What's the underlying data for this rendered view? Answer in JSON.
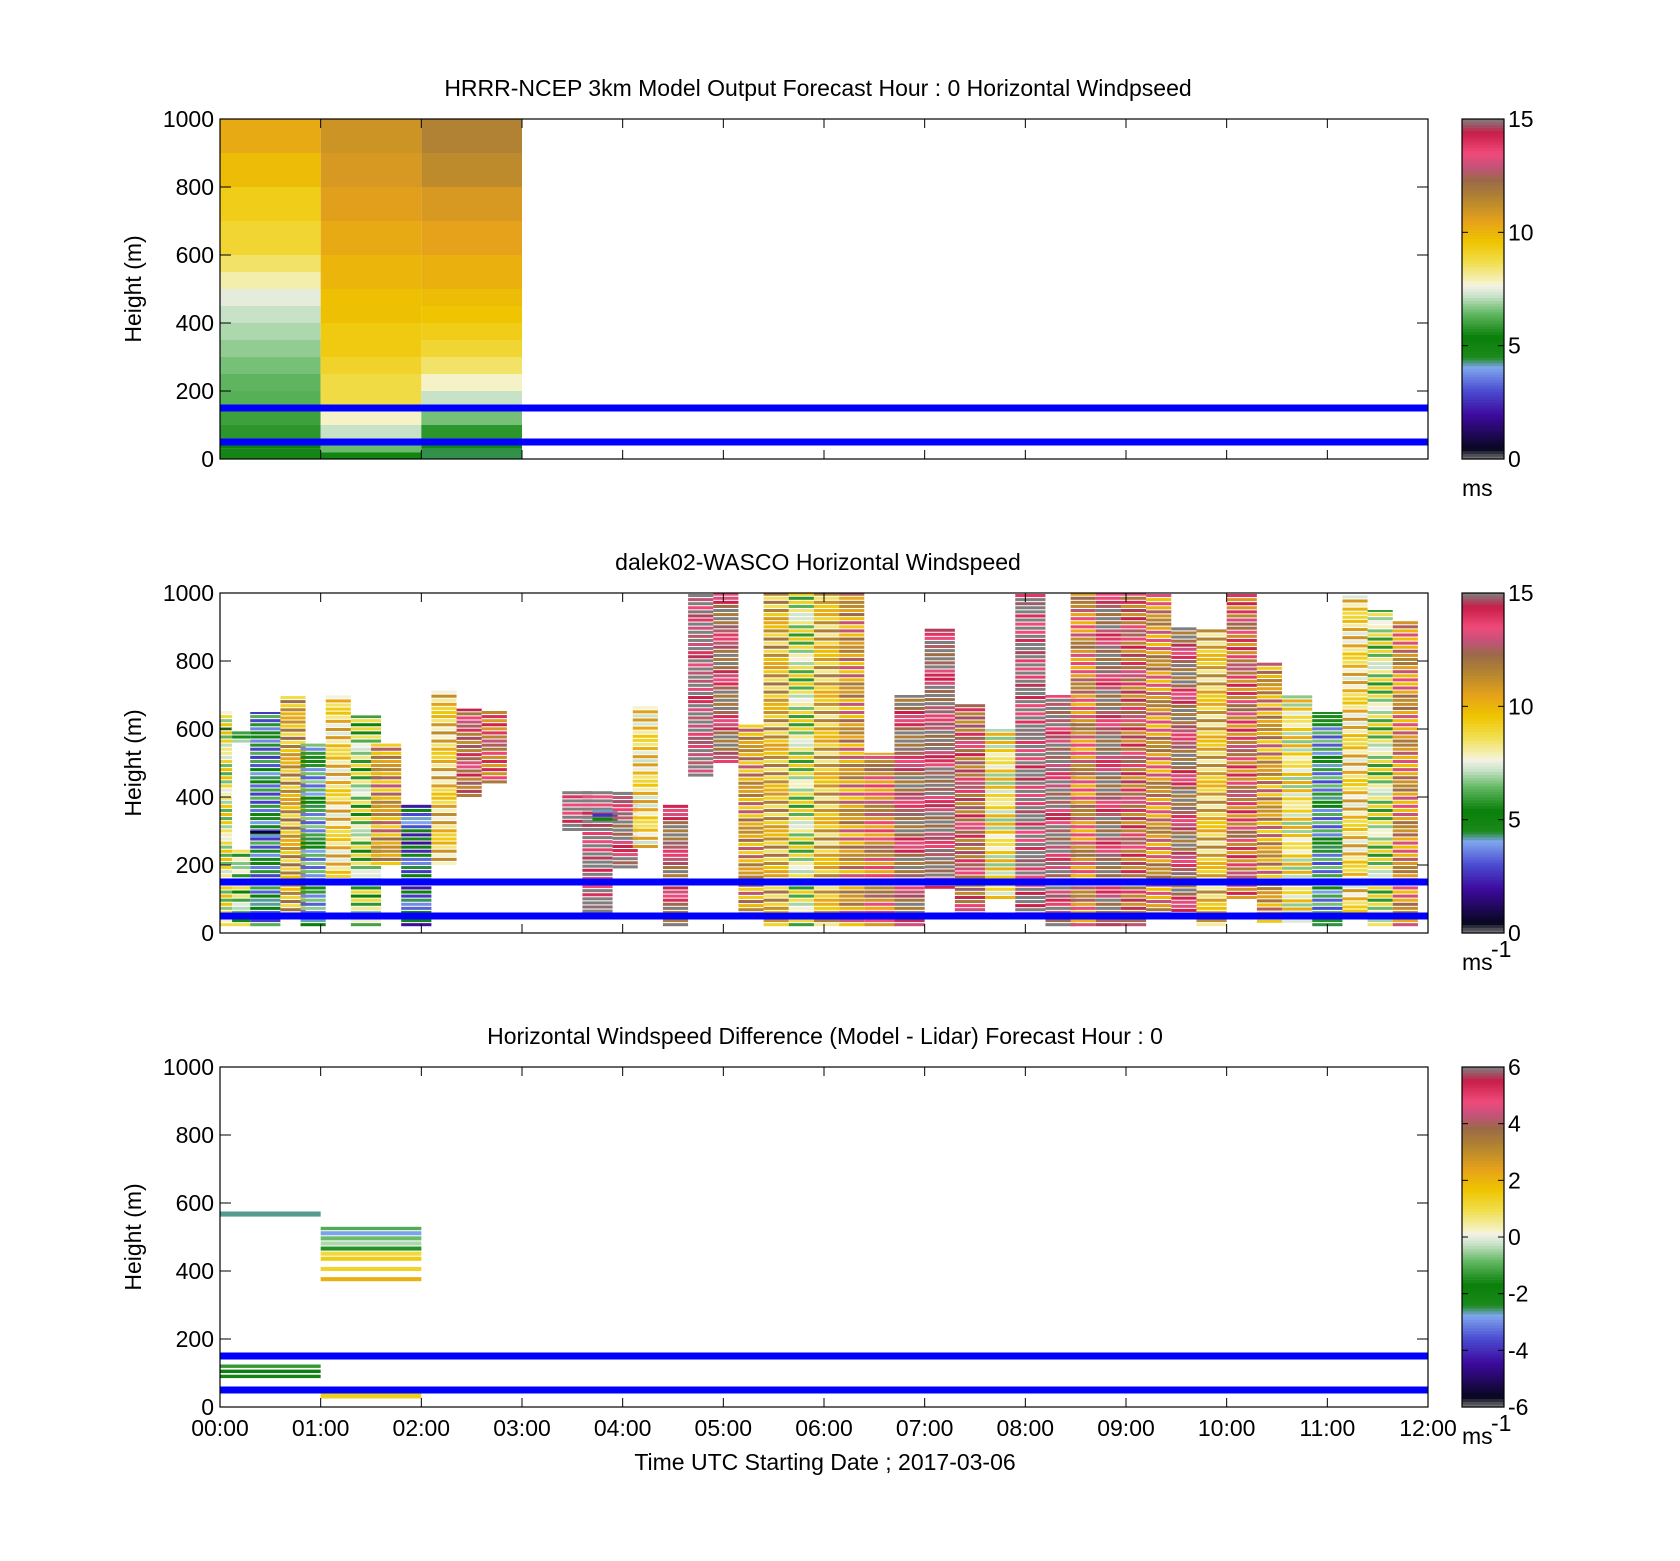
{
  "figure": {
    "background": "#ffffff",
    "xlabel": "Time UTC  Starting Date ; 2017-03-06",
    "x_tick_labels": [
      "00:00",
      "01:00",
      "02:00",
      "03:00",
      "04:00",
      "05:00",
      "06:00",
      "07:00",
      "08:00",
      "09:00",
      "10:00",
      "11:00",
      "12:00"
    ],
    "y_tick_labels": [
      "0",
      "200",
      "400",
      "600",
      "800",
      "1000"
    ],
    "ref_line_color": "#0000ff"
  },
  "chart_data": [
    {
      "type": "heatmap",
      "id": "model",
      "title": "HRRR-NCEP 3km Model Output   Forecast Hour : 0 Horizontal Windpseed",
      "ylabel": "Height (m)",
      "xlim_hours": [
        0,
        12
      ],
      "ylim": [
        0,
        1000
      ],
      "ref_lines": [
        150,
        50
      ],
      "colorbar": {
        "min": 0,
        "max": 15,
        "ticks": [
          "0",
          "5",
          "10",
          "15"
        ],
        "unit": "ms",
        "unit_sup": ""
      },
      "cells": [
        {
          "t0": 0,
          "t1": 1,
          "h0": 0,
          "h1": 30,
          "v": 4.8
        },
        {
          "t0": 0,
          "t1": 1,
          "h0": 30,
          "h1": 60,
          "v": 5.4
        },
        {
          "t0": 0,
          "t1": 1,
          "h0": 60,
          "h1": 100,
          "v": 5.8
        },
        {
          "t0": 0,
          "t1": 1,
          "h0": 100,
          "h1": 150,
          "v": 6.0
        },
        {
          "t0": 0,
          "t1": 1,
          "h0": 150,
          "h1": 200,
          "v": 6.3
        },
        {
          "t0": 0,
          "t1": 1,
          "h0": 200,
          "h1": 250,
          "v": 6.4
        },
        {
          "t0": 0,
          "t1": 1,
          "h0": 250,
          "h1": 300,
          "v": 6.6
        },
        {
          "t0": 0,
          "t1": 1,
          "h0": 300,
          "h1": 350,
          "v": 6.8
        },
        {
          "t0": 0,
          "t1": 1,
          "h0": 350,
          "h1": 400,
          "v": 7.0
        },
        {
          "t0": 0,
          "t1": 1,
          "h0": 400,
          "h1": 450,
          "v": 7.2
        },
        {
          "t0": 0,
          "t1": 1,
          "h0": 450,
          "h1": 500,
          "v": 7.5
        },
        {
          "t0": 0,
          "t1": 1,
          "h0": 500,
          "h1": 550,
          "v": 8.0
        },
        {
          "t0": 0,
          "t1": 1,
          "h0": 550,
          "h1": 600,
          "v": 8.5
        },
        {
          "t0": 0,
          "t1": 1,
          "h0": 600,
          "h1": 700,
          "v": 9.0
        },
        {
          "t0": 0,
          "t1": 1,
          "h0": 700,
          "h1": 800,
          "v": 9.3
        },
        {
          "t0": 0,
          "t1": 1,
          "h0": 800,
          "h1": 900,
          "v": 9.8
        },
        {
          "t0": 0,
          "t1": 1,
          "h0": 900,
          "h1": 1000,
          "v": 10.3
        },
        {
          "t0": 1,
          "t1": 2,
          "h0": 0,
          "h1": 20,
          "v": 5.0
        },
        {
          "t0": 1,
          "t1": 2,
          "h0": 20,
          "h1": 60,
          "v": 6.5
        },
        {
          "t0": 1,
          "t1": 2,
          "h0": 60,
          "h1": 100,
          "v": 7.2
        },
        {
          "t0": 1,
          "t1": 2,
          "h0": 100,
          "h1": 150,
          "v": 7.8
        },
        {
          "t0": 1,
          "t1": 2,
          "h0": 150,
          "h1": 250,
          "v": 8.8
        },
        {
          "t0": 1,
          "t1": 2,
          "h0": 250,
          "h1": 300,
          "v": 9.1
        },
        {
          "t0": 1,
          "t1": 2,
          "h0": 300,
          "h1": 400,
          "v": 9.4
        },
        {
          "t0": 1,
          "t1": 2,
          "h0": 400,
          "h1": 500,
          "v": 9.7
        },
        {
          "t0": 1,
          "t1": 2,
          "h0": 500,
          "h1": 600,
          "v": 10.0
        },
        {
          "t0": 1,
          "t1": 2,
          "h0": 600,
          "h1": 700,
          "v": 10.3
        },
        {
          "t0": 1,
          "t1": 2,
          "h0": 700,
          "h1": 800,
          "v": 10.6
        },
        {
          "t0": 1,
          "t1": 2,
          "h0": 800,
          "h1": 900,
          "v": 10.8
        },
        {
          "t0": 1,
          "t1": 2,
          "h0": 900,
          "h1": 1000,
          "v": 11.0
        },
        {
          "t0": 2,
          "t1": 3,
          "h0": 0,
          "h1": 30,
          "v": 4.4
        },
        {
          "t0": 2,
          "t1": 3,
          "h0": 30,
          "h1": 60,
          "v": 5.0
        },
        {
          "t0": 2,
          "t1": 3,
          "h0": 60,
          "h1": 100,
          "v": 5.8
        },
        {
          "t0": 2,
          "t1": 3,
          "h0": 100,
          "h1": 150,
          "v": 6.6
        },
        {
          "t0": 2,
          "t1": 3,
          "h0": 150,
          "h1": 200,
          "v": 7.2
        },
        {
          "t0": 2,
          "t1": 3,
          "h0": 200,
          "h1": 250,
          "v": 7.8
        },
        {
          "t0": 2,
          "t1": 3,
          "h0": 250,
          "h1": 300,
          "v": 8.5
        },
        {
          "t0": 2,
          "t1": 3,
          "h0": 300,
          "h1": 350,
          "v": 9.0
        },
        {
          "t0": 2,
          "t1": 3,
          "h0": 350,
          "h1": 400,
          "v": 9.3
        },
        {
          "t0": 2,
          "t1": 3,
          "h0": 400,
          "h1": 450,
          "v": 9.6
        },
        {
          "t0": 2,
          "t1": 3,
          "h0": 450,
          "h1": 500,
          "v": 9.8
        },
        {
          "t0": 2,
          "t1": 3,
          "h0": 500,
          "h1": 600,
          "v": 10.1
        },
        {
          "t0": 2,
          "t1": 3,
          "h0": 600,
          "h1": 700,
          "v": 10.5
        },
        {
          "t0": 2,
          "t1": 3,
          "h0": 700,
          "h1": 800,
          "v": 10.8
        },
        {
          "t0": 2,
          "t1": 3,
          "h0": 800,
          "h1": 900,
          "v": 11.3
        },
        {
          "t0": 2,
          "t1": 3,
          "h0": 900,
          "h1": 1000,
          "v": 11.6
        }
      ]
    },
    {
      "type": "heatmap",
      "id": "lidar",
      "title": "dalek02-WASCO  Horizontal Windspeed",
      "ylabel": "Height (m)",
      "xlim_hours": [
        0,
        12
      ],
      "ylim": [
        0,
        1000
      ],
      "ref_lines": [
        150,
        50
      ],
      "colorbar": {
        "min": 0,
        "max": 15,
        "ticks": [
          "0",
          "5",
          "10",
          "15"
        ],
        "unit": "ms",
        "unit_sup": "-1"
      },
      "cells": [
        {
          "t0": 0.0,
          "t1": 0.12,
          "h0": 20,
          "h1": 660,
          "v": 8.0
        },
        {
          "t0": 0.12,
          "t1": 0.3,
          "h0": 560,
          "h1": 600,
          "v": 5.6
        },
        {
          "t0": 0.12,
          "t1": 0.3,
          "h0": 20,
          "h1": 250,
          "v": 7.0
        },
        {
          "t0": 0.3,
          "t1": 0.6,
          "h0": 20,
          "h1": 650,
          "v": 4.5
        },
        {
          "t0": 0.3,
          "t1": 0.6,
          "h0": 280,
          "h1": 300,
          "v": 2.3
        },
        {
          "t0": 0.6,
          "t1": 0.85,
          "h0": 40,
          "h1": 700,
          "v": 10.5
        },
        {
          "t0": 0.8,
          "t1": 1.05,
          "h0": 20,
          "h1": 560,
          "v": 5.0
        },
        {
          "t0": 1.05,
          "t1": 1.3,
          "h0": 150,
          "h1": 700,
          "v": 9.2
        },
        {
          "t0": 1.3,
          "t1": 1.6,
          "h0": 20,
          "h1": 640,
          "v": 7.2
        },
        {
          "t0": 1.5,
          "t1": 1.8,
          "h0": 200,
          "h1": 560,
          "v": 11.0
        },
        {
          "t0": 1.8,
          "t1": 2.1,
          "h0": 20,
          "h1": 380,
          "v": 3.8
        },
        {
          "t0": 2.1,
          "t1": 2.35,
          "h0": 200,
          "h1": 720,
          "v": 9.5
        },
        {
          "t0": 2.35,
          "t1": 2.6,
          "h0": 400,
          "h1": 660,
          "v": 13.0
        },
        {
          "t0": 2.6,
          "t1": 2.85,
          "h0": 440,
          "h1": 660,
          "v": 12.5
        },
        {
          "t0": 3.4,
          "t1": 3.7,
          "h0": 300,
          "h1": 420,
          "v": 15.2
        },
        {
          "t0": 3.6,
          "t1": 3.9,
          "h0": 60,
          "h1": 420,
          "v": 15.2
        },
        {
          "t0": 3.7,
          "t1": 3.95,
          "h0": 330,
          "h1": 370,
          "v": 3.6
        },
        {
          "t0": 3.9,
          "t1": 4.15,
          "h0": 190,
          "h1": 420,
          "v": 14.0
        },
        {
          "t0": 4.1,
          "t1": 4.35,
          "h0": 250,
          "h1": 670,
          "v": 9.0
        },
        {
          "t0": 4.4,
          "t1": 4.65,
          "h0": 20,
          "h1": 380,
          "v": 13.5
        },
        {
          "t0": 4.65,
          "t1": 4.9,
          "h0": 460,
          "h1": 1000,
          "v": 14.5
        },
        {
          "t0": 4.9,
          "t1": 5.15,
          "h0": 500,
          "h1": 1000,
          "v": 13.5
        },
        {
          "t0": 5.15,
          "t1": 5.4,
          "h0": 40,
          "h1": 620,
          "v": 11.0
        },
        {
          "t0": 5.4,
          "t1": 5.65,
          "h0": 20,
          "h1": 1000,
          "v": 10.3
        },
        {
          "t0": 5.65,
          "t1": 5.9,
          "h0": 20,
          "h1": 1000,
          "v": 7.6
        },
        {
          "t0": 5.9,
          "t1": 6.15,
          "h0": 20,
          "h1": 1000,
          "v": 10.0
        },
        {
          "t0": 6.15,
          "t1": 6.4,
          "h0": 20,
          "h1": 1000,
          "v": 11.2
        },
        {
          "t0": 6.4,
          "t1": 6.7,
          "h0": 20,
          "h1": 530,
          "v": 12.0
        },
        {
          "t0": 6.7,
          "t1": 7.0,
          "h0": 20,
          "h1": 700,
          "v": 13.5
        },
        {
          "t0": 7.0,
          "t1": 7.3,
          "h0": 130,
          "h1": 900,
          "v": 14.0
        },
        {
          "t0": 7.3,
          "t1": 7.6,
          "h0": 40,
          "h1": 680,
          "v": 13.0
        },
        {
          "t0": 7.6,
          "t1": 7.9,
          "h0": 100,
          "h1": 600,
          "v": 8.5
        },
        {
          "t0": 7.9,
          "t1": 8.2,
          "h0": 40,
          "h1": 1000,
          "v": 15.2
        },
        {
          "t0": 8.2,
          "t1": 8.5,
          "h0": 20,
          "h1": 700,
          "v": 14.2
        },
        {
          "t0": 8.45,
          "t1": 8.7,
          "h0": 20,
          "h1": 1000,
          "v": 11.8
        },
        {
          "t0": 8.7,
          "t1": 8.95,
          "h0": 20,
          "h1": 1000,
          "v": 13.8
        },
        {
          "t0": 8.95,
          "t1": 9.2,
          "h0": 20,
          "h1": 1000,
          "v": 12.8
        },
        {
          "t0": 9.2,
          "t1": 9.45,
          "h0": 40,
          "h1": 1000,
          "v": 11.5
        },
        {
          "t0": 9.45,
          "t1": 9.7,
          "h0": 50,
          "h1": 900,
          "v": 13.5
        },
        {
          "t0": 9.7,
          "t1": 10.0,
          "h0": 20,
          "h1": 900,
          "v": 9.8
        },
        {
          "t0": 10.0,
          "t1": 10.3,
          "h0": 100,
          "h1": 1000,
          "v": 12.5
        },
        {
          "t0": 10.3,
          "t1": 10.55,
          "h0": 30,
          "h1": 800,
          "v": 11.0
        },
        {
          "t0": 10.55,
          "t1": 10.85,
          "h0": 30,
          "h1": 700,
          "v": 8.5
        },
        {
          "t0": 10.85,
          "t1": 11.15,
          "h0": 20,
          "h1": 650,
          "v": 4.8
        },
        {
          "t0": 11.15,
          "t1": 11.4,
          "h0": 60,
          "h1": 1000,
          "v": 9.2
        },
        {
          "t0": 11.4,
          "t1": 11.65,
          "h0": 20,
          "h1": 950,
          "v": 7.5
        },
        {
          "t0": 11.65,
          "t1": 11.9,
          "h0": 20,
          "h1": 920,
          "v": 11.5
        }
      ]
    },
    {
      "type": "heatmap",
      "id": "difference",
      "title": "Horizontal Windspeed Difference (Model - Lidar) Forecast Hour : 0",
      "ylabel": "Height (m)",
      "xlim_hours": [
        0,
        12
      ],
      "ylim": [
        0,
        1000
      ],
      "ref_lines": [
        150,
        50
      ],
      "colorbar": {
        "min": -6,
        "max": 6,
        "ticks": [
          "-6",
          "-4",
          "-2",
          "0",
          "2",
          "4",
          "6"
        ],
        "unit": "ms",
        "unit_sup": "-1"
      },
      "cells": [
        {
          "t0": 0,
          "t1": 1,
          "h0": 560,
          "h1": 575,
          "v": -2.6
        },
        {
          "t0": 0,
          "t1": 1,
          "h0": 115,
          "h1": 125,
          "v": -1.3
        },
        {
          "t0": 0,
          "t1": 1,
          "h0": 100,
          "h1": 110,
          "v": -1.8
        },
        {
          "t0": 0,
          "t1": 1,
          "h0": 85,
          "h1": 95,
          "v": -2.1
        },
        {
          "t0": 1,
          "t1": 2,
          "h0": 520,
          "h1": 530,
          "v": -1.0
        },
        {
          "t0": 1,
          "t1": 2,
          "h0": 505,
          "h1": 517,
          "v": -2.8
        },
        {
          "t0": 1,
          "t1": 2,
          "h0": 490,
          "h1": 502,
          "v": -0.8
        },
        {
          "t0": 1,
          "t1": 2,
          "h0": 475,
          "h1": 487,
          "v": -0.4
        },
        {
          "t0": 1,
          "t1": 2,
          "h0": 460,
          "h1": 472,
          "v": -1.4
        },
        {
          "t0": 1,
          "t1": 2,
          "h0": 445,
          "h1": 457,
          "v": 1.1
        },
        {
          "t0": 1,
          "t1": 2,
          "h0": 430,
          "h1": 442,
          "v": 1.5
        },
        {
          "t0": 1,
          "t1": 2,
          "h0": 400,
          "h1": 412,
          "v": 1.3
        },
        {
          "t0": 1,
          "t1": 2,
          "h0": 370,
          "h1": 382,
          "v": 2.1
        },
        {
          "t0": 1,
          "t1": 2,
          "h0": 25,
          "h1": 40,
          "v": 1.4
        }
      ]
    }
  ]
}
